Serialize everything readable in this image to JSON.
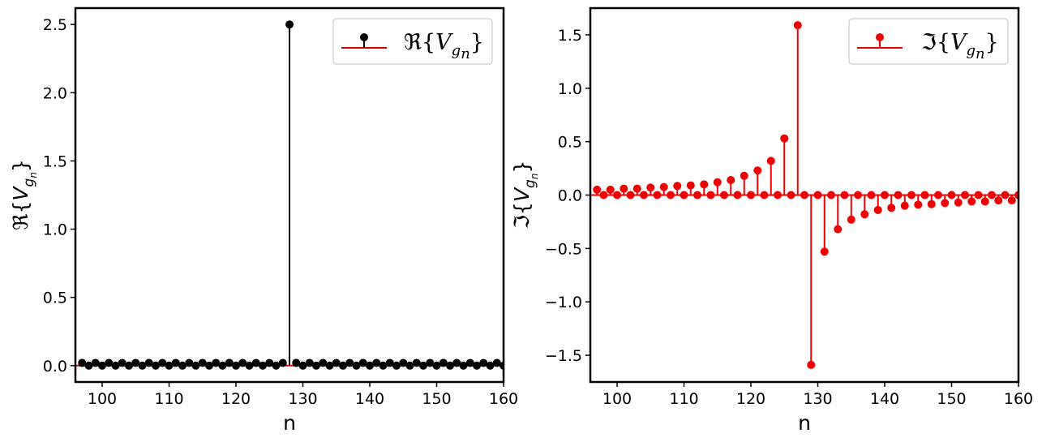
{
  "chart_data": [
    {
      "type": "stem",
      "name": "real-part",
      "color": "#000000",
      "baseline_color": "#dd0000",
      "xlabel": "n",
      "ylabel": {
        "sym": "ℜ",
        "v": "V",
        "g": "g",
        "n": "n"
      },
      "legend": {
        "sym": "ℜ",
        "v": "V",
        "g": "g",
        "n": "n",
        "position": "top-right"
      },
      "xlim": [
        96,
        160
      ],
      "ylim": [
        -0.12,
        2.62
      ],
      "xticks": [
        100,
        110,
        120,
        130,
        140,
        150,
        160
      ],
      "xtick_labels": [
        "100",
        "110",
        "120",
        "130",
        "140",
        "150",
        "160"
      ],
      "yticks": [
        0.0,
        0.5,
        1.0,
        1.5,
        2.0,
        2.5
      ],
      "ytick_labels": [
        "0.0",
        "0.5",
        "1.0",
        "1.5",
        "2.0",
        "2.5"
      ],
      "points": [
        [
          97,
          0.02
        ],
        [
          98,
          0.0
        ],
        [
          99,
          0.02
        ],
        [
          100,
          0.0
        ],
        [
          101,
          0.02
        ],
        [
          102,
          0.0
        ],
        [
          103,
          0.02
        ],
        [
          104,
          0.0
        ],
        [
          105,
          0.02
        ],
        [
          106,
          0.0
        ],
        [
          107,
          0.02
        ],
        [
          108,
          0.0
        ],
        [
          109,
          0.02
        ],
        [
          110,
          0.0
        ],
        [
          111,
          0.02
        ],
        [
          112,
          0.0
        ],
        [
          113,
          0.02
        ],
        [
          114,
          0.0
        ],
        [
          115,
          0.02
        ],
        [
          116,
          0.0
        ],
        [
          117,
          0.02
        ],
        [
          118,
          0.0
        ],
        [
          119,
          0.02
        ],
        [
          120,
          0.0
        ],
        [
          121,
          0.02
        ],
        [
          122,
          0.0
        ],
        [
          123,
          0.02
        ],
        [
          124,
          0.0
        ],
        [
          125,
          0.02
        ],
        [
          126,
          0.0
        ],
        [
          127,
          0.02
        ],
        [
          128,
          2.5
        ],
        [
          129,
          0.02
        ],
        [
          130,
          0.0
        ],
        [
          131,
          0.02
        ],
        [
          132,
          0.0
        ],
        [
          133,
          0.02
        ],
        [
          134,
          0.0
        ],
        [
          135,
          0.02
        ],
        [
          136,
          0.0
        ],
        [
          137,
          0.02
        ],
        [
          138,
          0.0
        ],
        [
          139,
          0.02
        ],
        [
          140,
          0.0
        ],
        [
          141,
          0.02
        ],
        [
          142,
          0.0
        ],
        [
          143,
          0.02
        ],
        [
          144,
          0.0
        ],
        [
          145,
          0.02
        ],
        [
          146,
          0.0
        ],
        [
          147,
          0.02
        ],
        [
          148,
          0.0
        ],
        [
          149,
          0.02
        ],
        [
          150,
          0.0
        ],
        [
          151,
          0.02
        ],
        [
          152,
          0.0
        ],
        [
          153,
          0.02
        ],
        [
          154,
          0.0
        ],
        [
          155,
          0.02
        ],
        [
          156,
          0.0
        ],
        [
          157,
          0.02
        ],
        [
          158,
          0.0
        ],
        [
          159,
          0.02
        ],
        [
          160,
          0.0
        ]
      ]
    },
    {
      "type": "stem",
      "name": "imag-part",
      "color": "#ee0000",
      "baseline_color": "#ee0000",
      "xlabel": "n",
      "ylabel": {
        "sym": "ℑ",
        "v": "V",
        "g": "g",
        "n": "n"
      },
      "legend": {
        "sym": "ℑ",
        "v": "V",
        "g": "g",
        "n": "n",
        "position": "top-right"
      },
      "xlim": [
        96,
        160
      ],
      "ylim": [
        -1.75,
        1.75
      ],
      "xticks": [
        100,
        110,
        120,
        130,
        140,
        150,
        160
      ],
      "xtick_labels": [
        "100",
        "110",
        "120",
        "130",
        "140",
        "150",
        "160"
      ],
      "yticks": [
        -1.5,
        -1.0,
        -0.5,
        0.0,
        0.5,
        1.0,
        1.5
      ],
      "ytick_labels": [
        "−1.5",
        "−1.0",
        "−0.5",
        "0.0",
        "0.5",
        "1.0",
        "1.5"
      ],
      "points": [
        [
          97,
          0.05
        ],
        [
          98,
          0.0
        ],
        [
          99,
          0.05
        ],
        [
          100,
          0.0
        ],
        [
          101,
          0.06
        ],
        [
          102,
          0.0
        ],
        [
          103,
          0.06
        ],
        [
          104,
          0.0
        ],
        [
          105,
          0.07
        ],
        [
          106,
          0.0
        ],
        [
          107,
          0.075
        ],
        [
          108,
          0.0
        ],
        [
          109,
          0.085
        ],
        [
          110,
          0.0
        ],
        [
          111,
          0.09
        ],
        [
          112,
          0.0
        ],
        [
          113,
          0.1
        ],
        [
          114,
          0.0
        ],
        [
          115,
          0.12
        ],
        [
          116,
          0.0
        ],
        [
          117,
          0.14
        ],
        [
          118,
          0.0
        ],
        [
          119,
          0.18
        ],
        [
          120,
          0.0
        ],
        [
          121,
          0.23
        ],
        [
          122,
          0.0
        ],
        [
          123,
          0.32
        ],
        [
          124,
          0.0
        ],
        [
          125,
          0.53
        ],
        [
          126,
          0.0
        ],
        [
          127,
          1.59
        ],
        [
          128,
          0.0
        ],
        [
          129,
          -1.59
        ],
        [
          130,
          0.0
        ],
        [
          131,
          -0.53
        ],
        [
          132,
          0.0
        ],
        [
          133,
          -0.32
        ],
        [
          134,
          0.0
        ],
        [
          135,
          -0.23
        ],
        [
          136,
          0.0
        ],
        [
          137,
          -0.18
        ],
        [
          138,
          0.0
        ],
        [
          139,
          -0.14
        ],
        [
          140,
          0.0
        ],
        [
          141,
          -0.12
        ],
        [
          142,
          0.0
        ],
        [
          143,
          -0.1
        ],
        [
          144,
          0.0
        ],
        [
          145,
          -0.09
        ],
        [
          146,
          0.0
        ],
        [
          147,
          -0.085
        ],
        [
          148,
          0.0
        ],
        [
          149,
          -0.075
        ],
        [
          150,
          0.0
        ],
        [
          151,
          -0.07
        ],
        [
          152,
          0.0
        ],
        [
          153,
          -0.06
        ],
        [
          154,
          0.0
        ],
        [
          155,
          -0.06
        ],
        [
          156,
          0.0
        ],
        [
          157,
          -0.05
        ],
        [
          158,
          0.0
        ],
        [
          159,
          -0.05
        ],
        [
          160,
          0.0
        ]
      ]
    }
  ]
}
